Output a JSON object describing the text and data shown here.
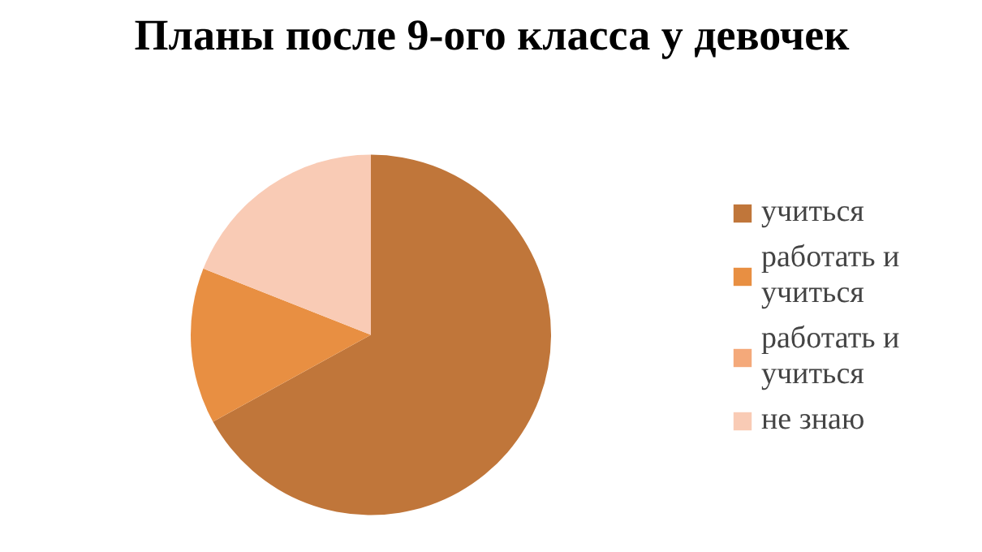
{
  "chart_data": {
    "type": "pie",
    "title": "Планы после 9-ого класса у девочек",
    "categories": [
      "учиться",
      "работать и учиться",
      "работать и учиться",
      "не знаю"
    ],
    "values": [
      67,
      14,
      0,
      19
    ],
    "colors": [
      "#c0763a",
      "#e88f42",
      "#f4a97a",
      "#f9cbb5"
    ],
    "legend": "right"
  }
}
